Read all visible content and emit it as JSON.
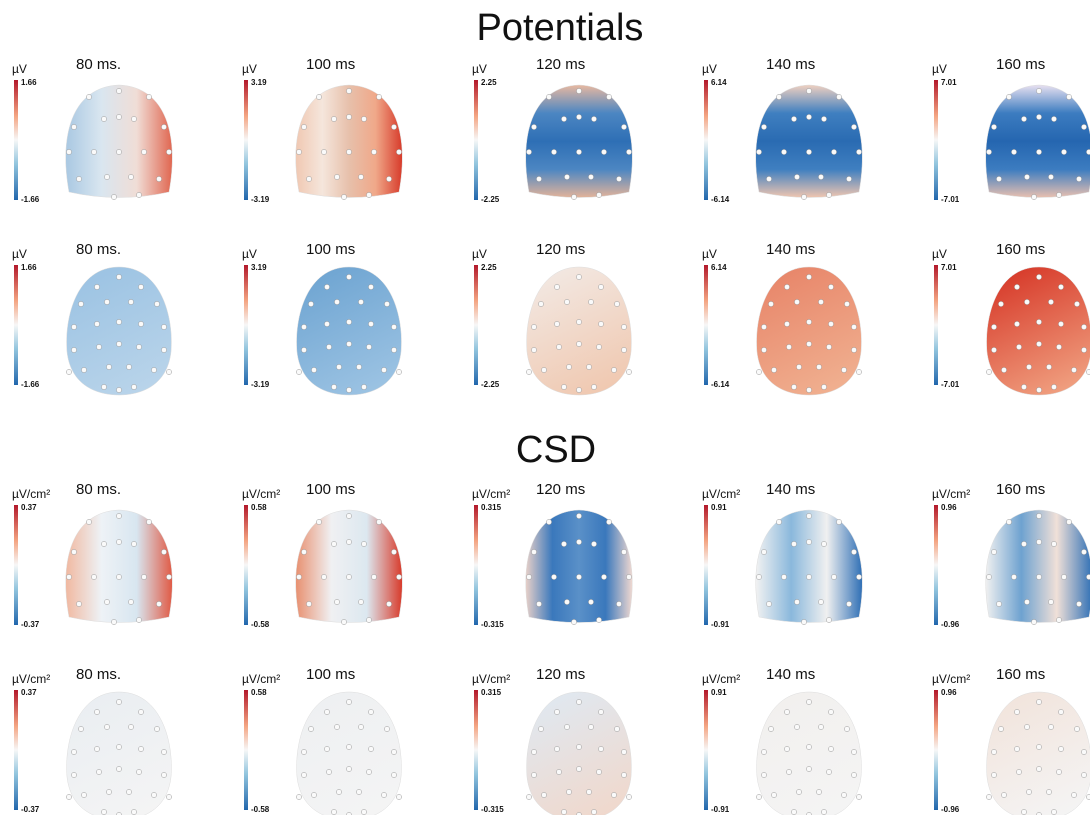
{
  "sections": [
    {
      "title": "Potentials",
      "rows": [
        {
          "panels": [
            {
              "time": "80 ms.",
              "unit": "µV",
              "max": "1.66",
              "min": "-1.66"
            },
            {
              "time": "100 ms",
              "unit": "µV",
              "max": "3.19",
              "min": "-3.19"
            },
            {
              "time": "120 ms",
              "unit": "µV",
              "max": "2.25",
              "min": "-2.25"
            },
            {
              "time": "140 ms",
              "unit": "µV",
              "max": "6.14",
              "min": "-6.14"
            },
            {
              "time": "160 ms",
              "unit": "µV",
              "max": "7.01",
              "min": "-7.01"
            }
          ]
        },
        {
          "panels": [
            {
              "time": "80 ms.",
              "unit": "µV",
              "max": "1.66",
              "min": "-1.66"
            },
            {
              "time": "100 ms",
              "unit": "µV",
              "max": "3.19",
              "min": "-3.19"
            },
            {
              "time": "120 ms",
              "unit": "µV",
              "max": "2.25",
              "min": "-2.25"
            },
            {
              "time": "140 ms",
              "unit": "µV",
              "max": "6.14",
              "min": "-6.14"
            },
            {
              "time": "160 ms",
              "unit": "µV",
              "max": "7.01",
              "min": "-7.01"
            }
          ]
        }
      ]
    },
    {
      "title": "CSD",
      "rows": [
        {
          "panels": [
            {
              "time": "80 ms.",
              "unit": "µV/cm²",
              "max": "0.37",
              "min": "-0.37"
            },
            {
              "time": "100 ms",
              "unit": "µV/cm²",
              "max": "0.58",
              "min": "-0.58"
            },
            {
              "time": "120 ms",
              "unit": "µV/cm²",
              "max": "0.315",
              "min": "-0.315"
            },
            {
              "time": "140 ms",
              "unit": "µV/cm²",
              "max": "0.91",
              "min": "-0.91"
            },
            {
              "time": "160 ms",
              "unit": "µV/cm²",
              "max": "0.96",
              "min": "-0.96"
            }
          ]
        },
        {
          "panels": [
            {
              "time": "80 ms.",
              "unit": "µV/cm²",
              "max": "0.37",
              "min": "-0.37"
            },
            {
              "time": "100 ms",
              "unit": "µV/cm²",
              "max": "0.58",
              "min": "-0.58"
            },
            {
              "time": "120 ms",
              "unit": "µV/cm²",
              "max": "0.315",
              "min": "-0.315"
            },
            {
              "time": "140 ms",
              "unit": "µV/cm²",
              "max": "0.91",
              "min": "-0.91"
            },
            {
              "time": "160 ms",
              "unit": "µV/cm²",
              "max": "0.96",
              "min": "-0.96"
            }
          ]
        }
      ]
    }
  ]
}
